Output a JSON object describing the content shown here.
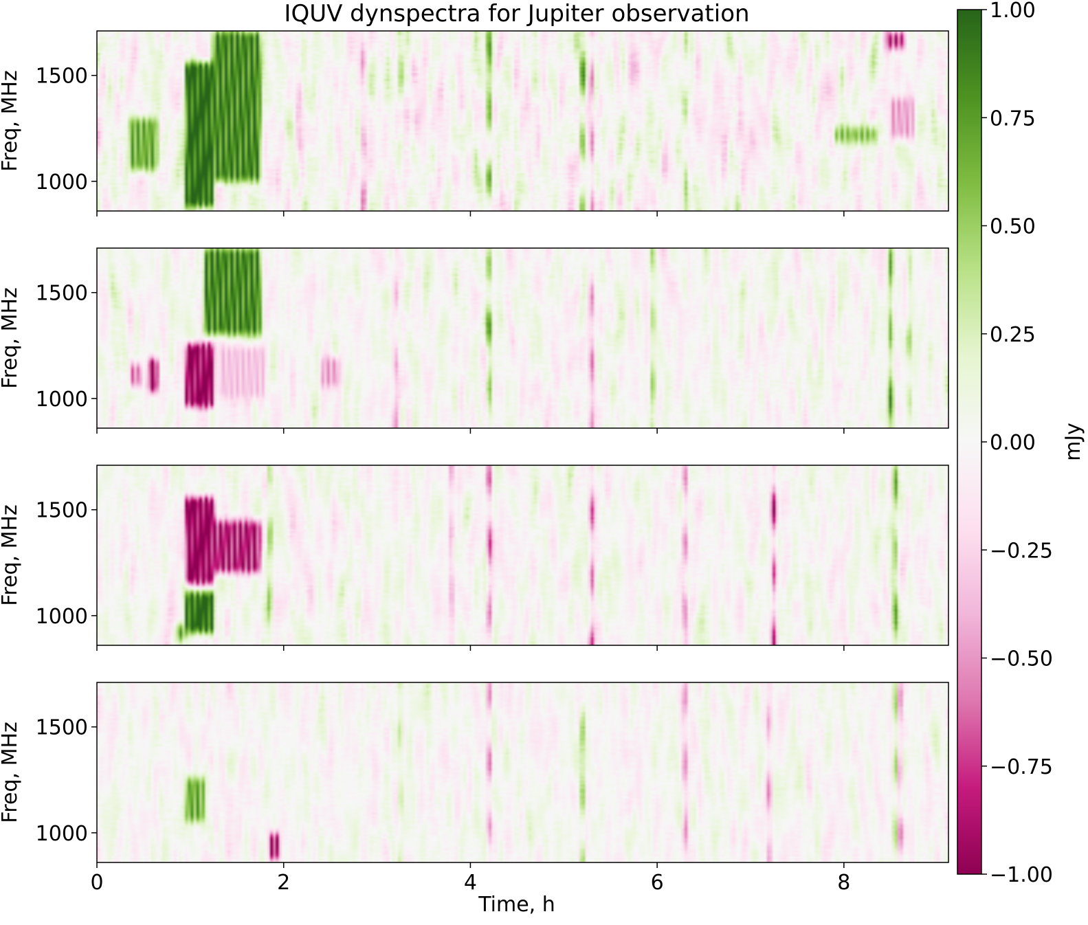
{
  "chart_data": {
    "type": "heatmap",
    "title": "IQUV dynspectra for Jupiter observation",
    "xlabel": "Time, h",
    "ylabel": "Freq, MHz",
    "xlim": [
      0,
      9.12
    ],
    "ylim": [
      860,
      1710
    ],
    "x_ticks": [
      0,
      2,
      4,
      6,
      8
    ],
    "y_ticks": [
      1000,
      1500
    ],
    "x_tick_labels": [
      "0",
      "2",
      "4",
      "6",
      "8"
    ],
    "y_tick_labels": [
      "1000",
      "1500"
    ],
    "colormap": "PiYG",
    "colorbar": {
      "label": "mJy",
      "vmin": -1.0,
      "vmax": 1.0,
      "ticks": [
        1.0,
        0.75,
        0.5,
        0.25,
        0.0,
        -0.25,
        -0.5,
        -0.75,
        -1.0
      ],
      "tick_labels": [
        "1.00",
        "0.75",
        "0.50",
        "0.25",
        "0.00",
        "−0.25",
        "−0.50",
        "−0.75",
        "−1.00"
      ],
      "colors": [
        "#8e0152",
        "#c51b7d",
        "#de77ae",
        "#f1b6da",
        "#fde0ef",
        "#f7f7f7",
        "#e6f5d0",
        "#b8e186",
        "#7fbc41",
        "#4d9221",
        "#276419"
      ]
    },
    "panels": [
      {
        "stokes": "I",
        "noise_amplitude": 0.35,
        "features": [
          {
            "t_start": 0.95,
            "t_end": 1.25,
            "f_low": 880,
            "f_high": 1560,
            "value": 1.0
          },
          {
            "t_start": 1.25,
            "t_end": 1.75,
            "f_low": 1000,
            "f_high": 1710,
            "value": 0.8
          },
          {
            "t_start": 0.35,
            "t_end": 0.65,
            "f_low": 1050,
            "f_high": 1300,
            "value": 0.6
          },
          {
            "t_start": 8.45,
            "t_end": 8.65,
            "f_low": 1620,
            "f_high": 1710,
            "value": -0.7
          },
          {
            "t_start": 8.5,
            "t_end": 8.75,
            "f_low": 1200,
            "f_high": 1400,
            "value": -0.4
          },
          {
            "t_start": 7.9,
            "t_end": 8.35,
            "f_low": 1180,
            "f_high": 1260,
            "value": 0.5
          }
        ],
        "rfi_columns": [
          {
            "t": 4.2,
            "value": 0.8
          },
          {
            "t": 5.2,
            "value": 0.7
          },
          {
            "t": 5.3,
            "value": -0.6
          },
          {
            "t": 3.25,
            "value": 0.4
          },
          {
            "t": 6.3,
            "value": 0.5
          },
          {
            "t": 2.85,
            "value": -0.5
          }
        ]
      },
      {
        "stokes": "Q",
        "noise_amplitude": 0.25,
        "features": [
          {
            "t_start": 0.95,
            "t_end": 1.25,
            "f_low": 960,
            "f_high": 1260,
            "value": -1.0
          },
          {
            "t_start": 0.55,
            "t_end": 0.65,
            "f_low": 1030,
            "f_high": 1190,
            "value": -0.9
          },
          {
            "t_start": 0.35,
            "t_end": 0.48,
            "f_low": 1050,
            "f_high": 1170,
            "value": -0.5
          },
          {
            "t_start": 1.15,
            "t_end": 1.75,
            "f_low": 1300,
            "f_high": 1710,
            "value": 0.8
          },
          {
            "t_start": 1.3,
            "t_end": 1.8,
            "f_low": 1000,
            "f_high": 1250,
            "value": -0.3
          },
          {
            "t_start": 2.4,
            "t_end": 2.6,
            "f_low": 1050,
            "f_high": 1200,
            "value": -0.4
          }
        ],
        "rfi_columns": [
          {
            "t": 4.2,
            "value": 0.6
          },
          {
            "t": 5.3,
            "value": -0.5
          },
          {
            "t": 5.95,
            "value": 0.5
          },
          {
            "t": 8.5,
            "value": 0.7
          },
          {
            "t": 3.2,
            "value": -0.4
          },
          {
            "t": 8.7,
            "value": 0.4
          }
        ]
      },
      {
        "stokes": "U",
        "noise_amplitude": 0.25,
        "features": [
          {
            "t_start": 0.95,
            "t_end": 1.25,
            "f_low": 1150,
            "f_high": 1560,
            "value": -1.0
          },
          {
            "t_start": 1.25,
            "t_end": 1.75,
            "f_low": 1200,
            "f_high": 1450,
            "value": -0.8
          },
          {
            "t_start": 0.95,
            "t_end": 1.25,
            "f_low": 920,
            "f_high": 1110,
            "value": 1.0
          },
          {
            "t_start": 0.85,
            "t_end": 0.95,
            "f_low": 880,
            "f_high": 960,
            "value": 0.6
          }
        ],
        "rfi_columns": [
          {
            "t": 4.2,
            "value": -0.6
          },
          {
            "t": 5.3,
            "value": -0.7
          },
          {
            "t": 6.3,
            "value": -0.5
          },
          {
            "t": 7.25,
            "value": -0.7
          },
          {
            "t": 8.55,
            "value": 0.6
          },
          {
            "t": 1.85,
            "value": 0.5
          },
          {
            "t": 3.8,
            "value": -0.4
          }
        ]
      },
      {
        "stokes": "V",
        "noise_amplitude": 0.22,
        "features": [
          {
            "t_start": 0.95,
            "t_end": 1.15,
            "f_low": 1050,
            "f_high": 1260,
            "value": 0.6
          },
          {
            "t_start": 1.85,
            "t_end": 1.95,
            "f_low": 870,
            "f_high": 1000,
            "value": -0.8
          }
        ],
        "rfi_columns": [
          {
            "t": 4.2,
            "value": -0.6
          },
          {
            "t": 5.2,
            "value": 0.6
          },
          {
            "t": 6.3,
            "value": -0.5
          },
          {
            "t": 7.2,
            "value": -0.5
          },
          {
            "t": 8.6,
            "value": -0.6
          },
          {
            "t": 3.25,
            "value": 0.4
          },
          {
            "t": 8.55,
            "value": 0.5
          }
        ]
      }
    ]
  }
}
